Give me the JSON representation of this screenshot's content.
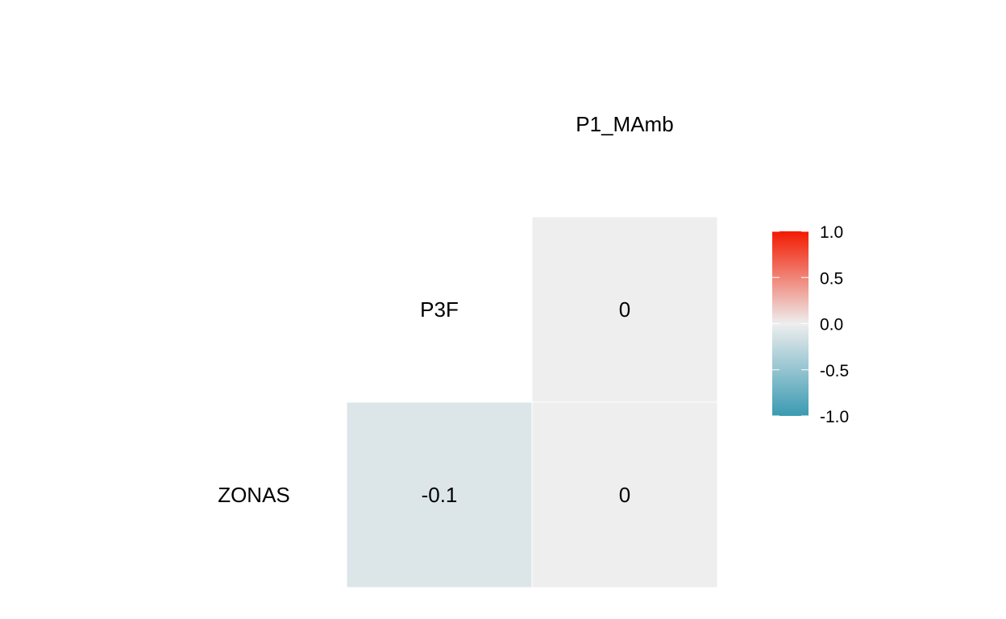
{
  "chart_data": {
    "type": "heatmap",
    "title": "",
    "variables": [
      "ZONAS",
      "P3F",
      "P1_MAmb"
    ],
    "cells": [
      {
        "row": "P3F",
        "col": "P1_MAmb",
        "value": 0,
        "label": "0"
      },
      {
        "row": "ZONAS",
        "col": "P3F",
        "value": -0.1,
        "label": "-0.1"
      },
      {
        "row": "ZONAS",
        "col": "P1_MAmb",
        "value": 0,
        "label": "0"
      }
    ],
    "colorbar": {
      "min": -1.0,
      "max": 1.0,
      "ticks": [
        "1.0",
        "0.5",
        "0.0",
        "-0.5",
        "-1.0"
      ],
      "tick_values": [
        1.0,
        0.5,
        0.0,
        -0.5,
        -1.0
      ],
      "colors": {
        "low": "#3A9AB2",
        "mid": "#EEEEEE",
        "high": "#F21A00"
      }
    }
  }
}
